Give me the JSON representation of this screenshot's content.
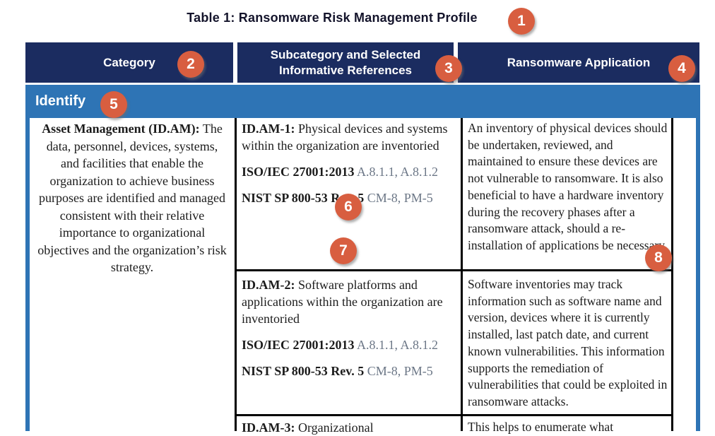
{
  "title": "Table 1: Ransomware Risk Management Profile",
  "colors": {
    "header_bg": "#1b2c60",
    "section_bg": "#2e74b5",
    "badge": "#d85e40",
    "reference_controls_text": "#6b7686",
    "body_text": "#1c1c1c",
    "grid_line": "#000000"
  },
  "table": {
    "columns": [
      {
        "label": "Category"
      },
      {
        "label": "Subcategory and Selected Informative References"
      },
      {
        "label": "Ransomware Application"
      }
    ],
    "section": "Identify",
    "category": {
      "name": "Asset Management (ID.AM):",
      "description": "The data, personnel, devices, systems, and facilities that enable the organization to achieve business purposes are identified and managed consistent with their relative importance to organizational objectives and the organization’s risk strategy."
    },
    "rows": [
      {
        "subcategory_id": "ID.AM-1:",
        "subcategory_text": "Physical devices and systems within the organization are inventoried",
        "references": [
          {
            "source": "ISO/IEC 27001:2013",
            "controls": "A.8.1.1, A.8.1.2"
          },
          {
            "source": "NIST SP 800-53 Rev. 5",
            "controls": "CM-8, PM-5"
          }
        ],
        "application": "An inventory of physical devices should be undertaken, reviewed, and maintained to ensure these devices are not vulnerable to ransomware. It is also beneficial to have a hardware inventory during the recovery phases after a ransomware attack, should a re-installation of applications be necessary."
      },
      {
        "subcategory_id": "ID.AM-2:",
        "subcategory_text": "Software platforms and applications within the organization are inventoried",
        "references": [
          {
            "source": "ISO/IEC 27001:2013",
            "controls": "A.8.1.1, A.8.1.2"
          },
          {
            "source": "NIST SP 800-53 Rev. 5",
            "controls": "CM-8, PM-5"
          }
        ],
        "application": "Software inventories may track information such as software name and version, devices where it is currently installed, last patch date, and current known vulnerabilities. This information supports the remediation of vulnerabilities that could be exploited in ransomware attacks."
      },
      {
        "subcategory_id": "ID.AM-3:",
        "subcategory_text": "Organizational",
        "application": "This helps to enumerate what"
      }
    ]
  },
  "annotations": [
    {
      "label": "1"
    },
    {
      "label": "2"
    },
    {
      "label": "3"
    },
    {
      "label": "4"
    },
    {
      "label": "5"
    },
    {
      "label": "6"
    },
    {
      "label": "7"
    },
    {
      "label": "8"
    }
  ]
}
